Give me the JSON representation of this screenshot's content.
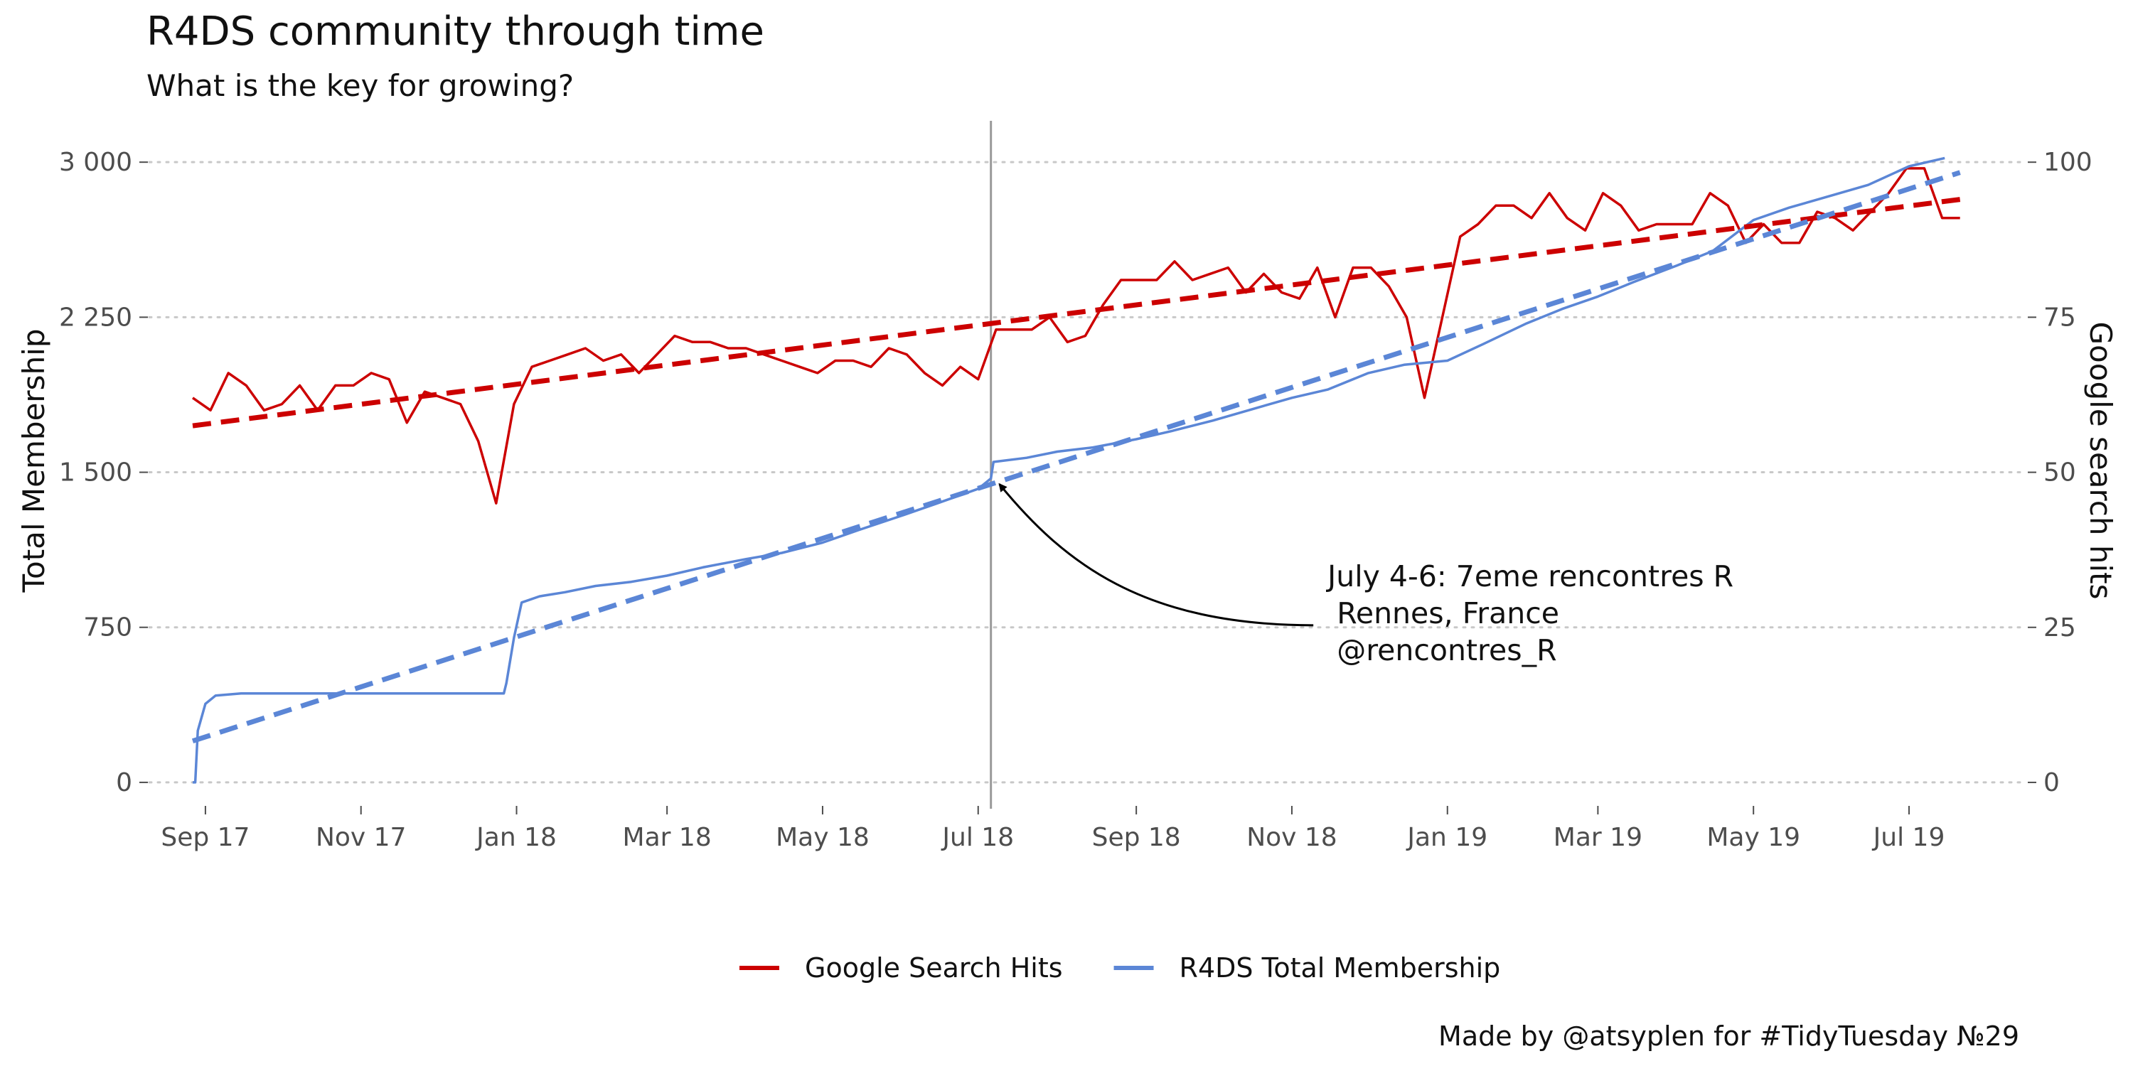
{
  "title": "R4DS community through time",
  "subtitle": "What is the key for growing?",
  "caption": "Made by @atsyplen for #TidyTuesday №29",
  "chart_data": {
    "type": "line",
    "title": "R4DS community through time",
    "subtitle": "What is the key for growing?",
    "ylabel": "Total Membership",
    "y2label": "Google search hits",
    "ylim": [
      -100,
      3200
    ],
    "y2lim": [
      -3.33,
      106.67
    ],
    "yticks": [
      0,
      750,
      1500,
      2250,
      3000
    ],
    "ytick_labels": [
      "0",
      "750",
      "1 500",
      "2 250",
      "3 000"
    ],
    "y2ticks": [
      0,
      25,
      50,
      75,
      100
    ],
    "y2tick_labels": [
      "0",
      "25",
      "50",
      "75",
      "100"
    ],
    "xlim": [
      "2017-08-10",
      "2019-08-16"
    ],
    "xticks": [
      "2017-09-01",
      "2017-11-01",
      "2018-01-01",
      "2018-03-01",
      "2018-05-01",
      "2018-07-01",
      "2018-09-01",
      "2018-11-01",
      "2019-01-01",
      "2019-03-01",
      "2019-05-01",
      "2019-07-01"
    ],
    "xtick_labels": [
      "Sep 17",
      "Nov 17",
      "Jan 18",
      "Mar 18",
      "May 18",
      "Jul 18",
      "Sep 18",
      "Nov 18",
      "Jan 19",
      "Mar 19",
      "May 19",
      "Jul 19"
    ],
    "grid": "horizontal dotted",
    "legend_position": "bottom",
    "colors": {
      "google": "#cc0000",
      "membership": "#5b86d6",
      "vline": "#999999"
    },
    "vline": {
      "x": "2018-07-06"
    },
    "annotation": {
      "lines": [
        "July 4-6: 7eme rencontres R",
        " Rennes, France",
        " @rencontres_R"
      ],
      "arrow_to": {
        "x": "2018-07-06",
        "y": 1470
      },
      "text_at": {
        "x": "2018-11-15",
        "y": 760
      }
    },
    "series": [
      {
        "name": "Google Search Hits",
        "axis": "right",
        "style": "line",
        "points": [
          [
            "2017-08-27",
            62
          ],
          [
            "2017-09-03",
            60
          ],
          [
            "2017-09-10",
            66
          ],
          [
            "2017-09-17",
            64
          ],
          [
            "2017-09-24",
            60
          ],
          [
            "2017-10-01",
            61
          ],
          [
            "2017-10-08",
            64
          ],
          [
            "2017-10-15",
            60
          ],
          [
            "2017-10-22",
            64
          ],
          [
            "2017-10-29",
            64
          ],
          [
            "2017-11-05",
            66
          ],
          [
            "2017-11-12",
            65
          ],
          [
            "2017-11-19",
            58
          ],
          [
            "2017-11-26",
            63
          ],
          [
            "2017-12-03",
            62
          ],
          [
            "2017-12-10",
            61
          ],
          [
            "2017-12-17",
            55
          ],
          [
            "2017-12-24",
            45
          ],
          [
            "2017-12-31",
            61
          ],
          [
            "2018-01-07",
            67
          ],
          [
            "2018-01-14",
            68
          ],
          [
            "2018-01-21",
            69
          ],
          [
            "2018-01-28",
            70
          ],
          [
            "2018-02-04",
            68
          ],
          [
            "2018-02-11",
            69
          ],
          [
            "2018-02-18",
            66
          ],
          [
            "2018-02-25",
            69
          ],
          [
            "2018-03-04",
            72
          ],
          [
            "2018-03-11",
            71
          ],
          [
            "2018-03-18",
            71
          ],
          [
            "2018-03-25",
            70
          ],
          [
            "2018-04-01",
            70
          ],
          [
            "2018-04-08",
            69
          ],
          [
            "2018-04-15",
            68
          ],
          [
            "2018-04-22",
            67
          ],
          [
            "2018-04-29",
            66
          ],
          [
            "2018-05-06",
            68
          ],
          [
            "2018-05-13",
            68
          ],
          [
            "2018-05-20",
            67
          ],
          [
            "2018-05-27",
            70
          ],
          [
            "2018-06-03",
            69
          ],
          [
            "2018-06-10",
            66
          ],
          [
            "2018-06-17",
            64
          ],
          [
            "2018-06-24",
            67
          ],
          [
            "2018-07-01",
            65
          ],
          [
            "2018-07-08",
            73
          ],
          [
            "2018-07-15",
            73
          ],
          [
            "2018-07-22",
            73
          ],
          [
            "2018-07-29",
            75
          ],
          [
            "2018-08-05",
            71
          ],
          [
            "2018-08-12",
            72
          ],
          [
            "2018-08-19",
            77
          ],
          [
            "2018-08-26",
            81
          ],
          [
            "2018-09-02",
            81
          ],
          [
            "2018-09-09",
            81
          ],
          [
            "2018-09-16",
            84
          ],
          [
            "2018-09-23",
            81
          ],
          [
            "2018-09-30",
            82
          ],
          [
            "2018-10-07",
            83
          ],
          [
            "2018-10-14",
            79
          ],
          [
            "2018-10-21",
            82
          ],
          [
            "2018-10-28",
            79
          ],
          [
            "2018-11-04",
            78
          ],
          [
            "2018-11-11",
            83
          ],
          [
            "2018-11-18",
            75
          ],
          [
            "2018-11-25",
            83
          ],
          [
            "2018-12-02",
            83
          ],
          [
            "2018-12-09",
            80
          ],
          [
            "2018-12-16",
            75
          ],
          [
            "2018-12-23",
            62
          ],
          [
            "2018-12-30",
            75
          ],
          [
            "2019-01-06",
            88
          ],
          [
            "2019-01-13",
            90
          ],
          [
            "2019-01-20",
            93
          ],
          [
            "2019-01-27",
            93
          ],
          [
            "2019-02-03",
            91
          ],
          [
            "2019-02-10",
            95
          ],
          [
            "2019-02-17",
            91
          ],
          [
            "2019-02-24",
            89
          ],
          [
            "2019-03-03",
            95
          ],
          [
            "2019-03-10",
            93
          ],
          [
            "2019-03-17",
            89
          ],
          [
            "2019-03-24",
            90
          ],
          [
            "2019-03-31",
            90
          ],
          [
            "2019-04-07",
            90
          ],
          [
            "2019-04-14",
            95
          ],
          [
            "2019-04-21",
            93
          ],
          [
            "2019-04-28",
            87
          ],
          [
            "2019-05-05",
            90
          ],
          [
            "2019-05-12",
            87
          ],
          [
            "2019-05-19",
            87
          ],
          [
            "2019-05-26",
            92
          ],
          [
            "2019-06-02",
            91
          ],
          [
            "2019-06-09",
            89
          ],
          [
            "2019-06-16",
            92
          ],
          [
            "2019-06-23",
            95
          ],
          [
            "2019-06-30",
            99
          ],
          [
            "2019-07-07",
            99
          ],
          [
            "2019-07-14",
            91
          ],
          [
            "2019-07-21",
            91
          ]
        ]
      },
      {
        "name": "R4DS Total Membership",
        "axis": "left",
        "style": "line",
        "points": [
          [
            "2017-08-27",
            0
          ],
          [
            "2017-08-28",
            0
          ],
          [
            "2017-08-29",
            250
          ],
          [
            "2017-09-01",
            380
          ],
          [
            "2017-09-05",
            420
          ],
          [
            "2017-09-15",
            430
          ],
          [
            "2017-11-01",
            430
          ],
          [
            "2017-12-27",
            430
          ],
          [
            "2017-12-28",
            480
          ],
          [
            "2017-12-31",
            700
          ],
          [
            "2018-01-03",
            870
          ],
          [
            "2018-01-10",
            900
          ],
          [
            "2018-01-20",
            920
          ],
          [
            "2018-02-01",
            950
          ],
          [
            "2018-02-15",
            970
          ],
          [
            "2018-03-01",
            1000
          ],
          [
            "2018-03-15",
            1040
          ],
          [
            "2018-04-01",
            1080
          ],
          [
            "2018-04-15",
            1110
          ],
          [
            "2018-05-01",
            1160
          ],
          [
            "2018-05-15",
            1220
          ],
          [
            "2018-06-01",
            1290
          ],
          [
            "2018-06-15",
            1350
          ],
          [
            "2018-07-01",
            1420
          ],
          [
            "2018-07-05",
            1460
          ],
          [
            "2018-07-06",
            1470
          ],
          [
            "2018-07-07",
            1550
          ],
          [
            "2018-07-20",
            1570
          ],
          [
            "2018-08-01",
            1600
          ],
          [
            "2018-08-15",
            1620
          ],
          [
            "2018-09-01",
            1660
          ],
          [
            "2018-09-15",
            1700
          ],
          [
            "2018-10-01",
            1750
          ],
          [
            "2018-10-15",
            1800
          ],
          [
            "2018-11-01",
            1860
          ],
          [
            "2018-11-15",
            1900
          ],
          [
            "2018-12-01",
            1980
          ],
          [
            "2018-12-15",
            2020
          ],
          [
            "2019-01-01",
            2040
          ],
          [
            "2019-01-15",
            2120
          ],
          [
            "2019-02-01",
            2220
          ],
          [
            "2019-02-15",
            2290
          ],
          [
            "2019-03-01",
            2350
          ],
          [
            "2019-03-15",
            2420
          ],
          [
            "2019-04-01",
            2500
          ],
          [
            "2019-04-15",
            2570
          ],
          [
            "2019-05-01",
            2720
          ],
          [
            "2019-05-15",
            2780
          ],
          [
            "2019-06-01",
            2840
          ],
          [
            "2019-06-15",
            2890
          ],
          [
            "2019-07-01",
            2980
          ],
          [
            "2019-07-15",
            3020
          ]
        ]
      }
    ],
    "trends": [
      {
        "series": "Google Search Hits",
        "axis": "right",
        "style": "dashed",
        "points": [
          [
            "2017-08-27",
            57.5
          ],
          [
            "2019-07-21",
            94
          ]
        ]
      },
      {
        "series": "R4DS Total Membership",
        "axis": "left",
        "style": "dashed",
        "points": [
          [
            "2017-08-27",
            200
          ],
          [
            "2019-07-21",
            2950
          ]
        ]
      }
    ],
    "legend": [
      "Google Search Hits",
      "R4DS Total Membership"
    ]
  }
}
